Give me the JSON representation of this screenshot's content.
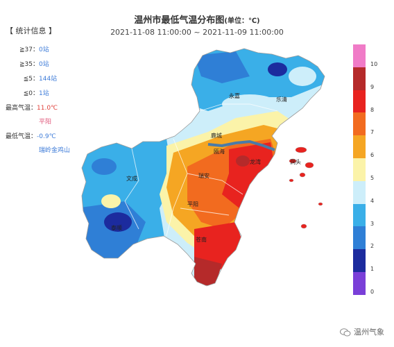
{
  "title": "温州市最低气温分布图",
  "title_unit": "(单位：℃)",
  "time_range": "2021-11-08 11:00:00 ~ 2021-11-09 11:00:00",
  "stats": {
    "header": "【 统计信息 】",
    "rows": [
      {
        "label": "≧37：",
        "value": "0站"
      },
      {
        "label": "≧35：",
        "value": "0站"
      },
      {
        "label": "≦5：",
        "value": "144站"
      },
      {
        "label": "≦0：",
        "value": "1站"
      }
    ],
    "max_label": "最高气温：",
    "max_value": "11.0℃",
    "max_place": "平阳",
    "min_label": "最低气温：",
    "min_value": "-0.9℃",
    "min_place": "瑞岭金鸡山"
  },
  "legend": {
    "labels": [
      "10",
      "9",
      "8",
      "7",
      "6",
      "5",
      "4",
      "3",
      "2",
      "1",
      "0"
    ],
    "colors": [
      "#f07bc7",
      "#b52a2a",
      "#e8231f",
      "#f26b1f",
      "#f5a623",
      "#fbf3a9",
      "#cdeefa",
      "#3aafe8",
      "#2f7fd6",
      "#1c2b9e",
      "#7a3fd8"
    ]
  },
  "places": {
    "yongjia": "永嘉",
    "yueqing": "乐清",
    "lucheng": "鹿城",
    "ouhai": "瓯海",
    "longwan": "龙湾",
    "dongtou": "洞头",
    "wencheng": "文成",
    "ruian": "瑞安",
    "pingyang": "平阳",
    "taishun": "泰顺",
    "cangnan": "苍南"
  },
  "footer": {
    "text": "温州气象"
  }
}
